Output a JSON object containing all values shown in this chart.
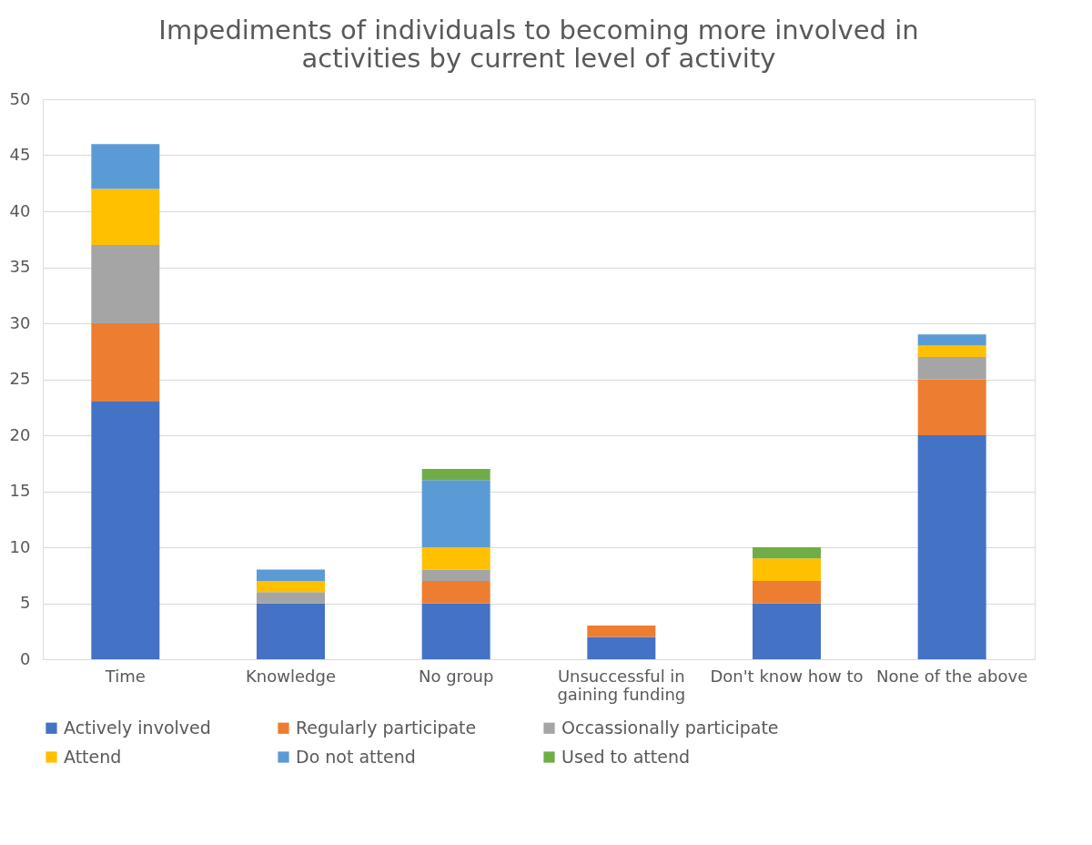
{
  "chart_data": {
    "type": "bar",
    "title": "Impediments of individuals to becoming more involved in activities by current level of activity",
    "categories": [
      "Time",
      "Knowledge",
      "No group",
      "Unsuccessful in gaining funding",
      "Don't know how to",
      "None of the above"
    ],
    "stacked": true,
    "series": [
      {
        "name": "Actively involved",
        "color": "#4472c4",
        "values": [
          23,
          5,
          5,
          2,
          5,
          20
        ]
      },
      {
        "name": "Regularly participate",
        "color": "#ed7d31",
        "values": [
          7,
          0,
          2,
          1,
          2,
          5
        ]
      },
      {
        "name": "Occassionally participate",
        "color": "#a5a5a5",
        "values": [
          7,
          1,
          1,
          0,
          0,
          2
        ]
      },
      {
        "name": "Attend",
        "color": "#ffc000",
        "values": [
          5,
          1,
          2,
          0,
          2,
          1
        ]
      },
      {
        "name": "Do not attend",
        "color": "#5b9bd5",
        "values": [
          4,
          1,
          6,
          0,
          0,
          1
        ]
      },
      {
        "name": "Used to attend",
        "color": "#70ad47",
        "values": [
          0,
          0,
          1,
          0,
          1,
          0
        ]
      }
    ],
    "ylim": [
      0,
      50
    ],
    "yticks": [
      0,
      5,
      10,
      15,
      20,
      25,
      30,
      35,
      40,
      45,
      50
    ],
    "grid": "y",
    "legend": "bottom"
  }
}
